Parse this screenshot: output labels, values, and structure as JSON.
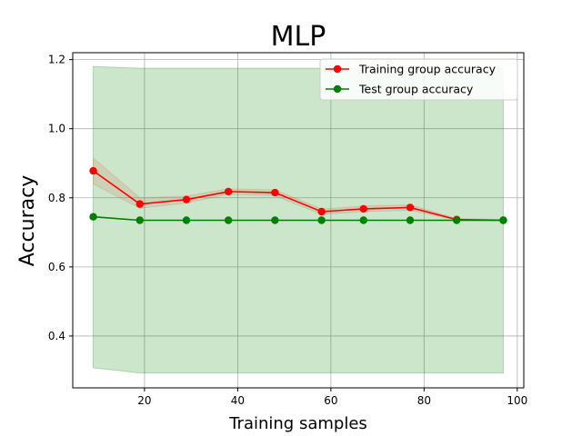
{
  "chart_data": {
    "type": "line",
    "title": "MLP",
    "xlabel": "Training samples",
    "ylabel": "Accuracy",
    "xlim": [
      4.6,
      101.4
    ],
    "ylim": [
      0.25,
      1.22
    ],
    "xticks": [
      20,
      40,
      60,
      80,
      100
    ],
    "yticks": [
      0.4,
      0.6,
      0.8,
      1.0,
      1.2
    ],
    "grid": true,
    "legend_position": "top-right",
    "x": [
      9,
      19,
      29,
      38,
      48,
      58,
      67,
      77,
      87,
      97
    ],
    "series": [
      {
        "name": "Training group accuracy",
        "color": "#ff0000",
        "marker": "circle",
        "values": [
          0.878,
          0.782,
          0.795,
          0.818,
          0.815,
          0.76,
          0.768,
          0.772,
          0.737,
          0.735
        ],
        "band_lower": [
          0.84,
          0.77,
          0.785,
          0.81,
          0.806,
          0.752,
          0.76,
          0.764,
          0.735,
          0.733
        ],
        "band_upper": [
          0.915,
          0.8,
          0.805,
          0.826,
          0.823,
          0.768,
          0.776,
          0.78,
          0.74,
          0.737
        ],
        "band_color": "#cc7755"
      },
      {
        "name": "Test group accuracy",
        "color": "#008000",
        "marker": "circle",
        "values": [
          0.745,
          0.735,
          0.735,
          0.735,
          0.735,
          0.735,
          0.735,
          0.735,
          0.735,
          0.735
        ],
        "band_lower": [
          0.308,
          0.293,
          0.293,
          0.293,
          0.293,
          0.293,
          0.293,
          0.293,
          0.293,
          0.293
        ],
        "band_upper": [
          1.18,
          1.175,
          1.175,
          1.175,
          1.175,
          1.175,
          1.175,
          1.175,
          1.175,
          1.175
        ],
        "band_color": "#008000"
      }
    ]
  }
}
